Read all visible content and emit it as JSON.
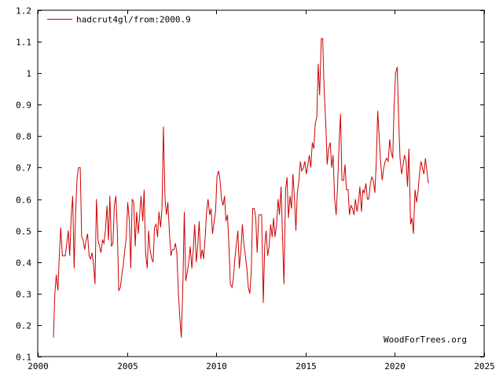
{
  "chart_data": {
    "type": "line",
    "title": "",
    "xlabel": "",
    "ylabel": "",
    "xlim": [
      2000,
      2025
    ],
    "ylim": [
      0.1,
      1.2
    ],
    "x_ticks": [
      "2000",
      "2005",
      "2010",
      "2015",
      "2020",
      "2025"
    ],
    "y_ticks": [
      "0.1",
      "0.2",
      "0.3",
      "0.4",
      "0.5",
      "0.6",
      "0.7",
      "0.8",
      "0.9",
      "1",
      "1.1",
      "1.2"
    ],
    "grid": false,
    "legend_position": "top-left",
    "series": [
      {
        "name": "hadcrut4gl/from:2000.9",
        "color": "#cc0000",
        "points": [
          [
            2000.88,
            0.16
          ],
          [
            2000.96,
            0.3
          ],
          [
            2001.04,
            0.36
          ],
          [
            2001.13,
            0.31
          ],
          [
            2001.21,
            0.42
          ],
          [
            2001.29,
            0.51
          ],
          [
            2001.38,
            0.42
          ],
          [
            2001.46,
            0.42
          ],
          [
            2001.54,
            0.42
          ],
          [
            2001.63,
            0.46
          ],
          [
            2001.71,
            0.5
          ],
          [
            2001.79,
            0.42
          ],
          [
            2001.88,
            0.55
          ],
          [
            2001.96,
            0.61
          ],
          [
            2002.04,
            0.38
          ],
          [
            2002.13,
            0.57
          ],
          [
            2002.21,
            0.67
          ],
          [
            2002.29,
            0.7
          ],
          [
            2002.38,
            0.7
          ],
          [
            2002.46,
            0.48
          ],
          [
            2002.54,
            0.47
          ],
          [
            2002.63,
            0.44
          ],
          [
            2002.71,
            0.47
          ],
          [
            2002.79,
            0.49
          ],
          [
            2002.88,
            0.42
          ],
          [
            2002.96,
            0.41
          ],
          [
            2003.04,
            0.43
          ],
          [
            2003.13,
            0.39
          ],
          [
            2003.21,
            0.33
          ],
          [
            2003.29,
            0.6
          ],
          [
            2003.38,
            0.47
          ],
          [
            2003.46,
            0.45
          ],
          [
            2003.54,
            0.43
          ],
          [
            2003.63,
            0.47
          ],
          [
            2003.71,
            0.46
          ],
          [
            2003.79,
            0.5
          ],
          [
            2003.88,
            0.58
          ],
          [
            2003.96,
            0.47
          ],
          [
            2004.04,
            0.61
          ],
          [
            2004.13,
            0.45
          ],
          [
            2004.21,
            0.46
          ],
          [
            2004.29,
            0.58
          ],
          [
            2004.38,
            0.61
          ],
          [
            2004.46,
            0.5
          ],
          [
            2004.54,
            0.31
          ],
          [
            2004.63,
            0.32
          ],
          [
            2004.71,
            0.36
          ],
          [
            2004.79,
            0.39
          ],
          [
            2004.88,
            0.44
          ],
          [
            2004.96,
            0.48
          ],
          [
            2005.04,
            0.59
          ],
          [
            2005.13,
            0.53
          ],
          [
            2005.21,
            0.38
          ],
          [
            2005.29,
            0.6
          ],
          [
            2005.38,
            0.59
          ],
          [
            2005.46,
            0.45
          ],
          [
            2005.54,
            0.56
          ],
          [
            2005.63,
            0.49
          ],
          [
            2005.71,
            0.55
          ],
          [
            2005.79,
            0.61
          ],
          [
            2005.88,
            0.53
          ],
          [
            2005.96,
            0.63
          ],
          [
            2006.04,
            0.43
          ],
          [
            2006.13,
            0.38
          ],
          [
            2006.21,
            0.5
          ],
          [
            2006.29,
            0.44
          ],
          [
            2006.38,
            0.41
          ],
          [
            2006.46,
            0.4
          ],
          [
            2006.54,
            0.51
          ],
          [
            2006.63,
            0.52
          ],
          [
            2006.71,
            0.48
          ],
          [
            2006.79,
            0.56
          ],
          [
            2006.88,
            0.51
          ],
          [
            2006.96,
            0.57
          ],
          [
            2007.04,
            0.83
          ],
          [
            2007.13,
            0.6
          ],
          [
            2007.21,
            0.55
          ],
          [
            2007.29,
            0.59
          ],
          [
            2007.38,
            0.49
          ],
          [
            2007.46,
            0.42
          ],
          [
            2007.54,
            0.44
          ],
          [
            2007.63,
            0.44
          ],
          [
            2007.71,
            0.46
          ],
          [
            2007.79,
            0.43
          ],
          [
            2007.88,
            0.3
          ],
          [
            2007.96,
            0.22
          ],
          [
            2008.04,
            0.16
          ],
          [
            2008.13,
            0.33
          ],
          [
            2008.21,
            0.56
          ],
          [
            2008.29,
            0.34
          ],
          [
            2008.38,
            0.37
          ],
          [
            2008.46,
            0.4
          ],
          [
            2008.54,
            0.45
          ],
          [
            2008.63,
            0.38
          ],
          [
            2008.71,
            0.44
          ],
          [
            2008.79,
            0.52
          ],
          [
            2008.88,
            0.4
          ],
          [
            2008.96,
            0.45
          ],
          [
            2009.04,
            0.53
          ],
          [
            2009.13,
            0.41
          ],
          [
            2009.21,
            0.44
          ],
          [
            2009.29,
            0.41
          ],
          [
            2009.38,
            0.48
          ],
          [
            2009.46,
            0.56
          ],
          [
            2009.54,
            0.6
          ],
          [
            2009.63,
            0.55
          ],
          [
            2009.71,
            0.57
          ],
          [
            2009.79,
            0.49
          ],
          [
            2009.88,
            0.53
          ],
          [
            2009.96,
            0.56
          ],
          [
            2010.04,
            0.67
          ],
          [
            2010.13,
            0.69
          ],
          [
            2010.21,
            0.66
          ],
          [
            2010.29,
            0.6
          ],
          [
            2010.38,
            0.58
          ],
          [
            2010.46,
            0.61
          ],
          [
            2010.54,
            0.53
          ],
          [
            2010.63,
            0.55
          ],
          [
            2010.71,
            0.45
          ],
          [
            2010.79,
            0.33
          ],
          [
            2010.88,
            0.32
          ],
          [
            2010.96,
            0.35
          ],
          [
            2011.04,
            0.41
          ],
          [
            2011.13,
            0.46
          ],
          [
            2011.21,
            0.5
          ],
          [
            2011.29,
            0.38
          ],
          [
            2011.38,
            0.44
          ],
          [
            2011.46,
            0.52
          ],
          [
            2011.54,
            0.46
          ],
          [
            2011.63,
            0.42
          ],
          [
            2011.71,
            0.38
          ],
          [
            2011.79,
            0.32
          ],
          [
            2011.88,
            0.3
          ],
          [
            2011.96,
            0.37
          ],
          [
            2012.04,
            0.57
          ],
          [
            2012.13,
            0.57
          ],
          [
            2012.21,
            0.54
          ],
          [
            2012.29,
            0.43
          ],
          [
            2012.38,
            0.55
          ],
          [
            2012.46,
            0.55
          ],
          [
            2012.54,
            0.55
          ],
          [
            2012.63,
            0.27
          ],
          [
            2012.71,
            0.45
          ],
          [
            2012.79,
            0.5
          ],
          [
            2012.88,
            0.42
          ],
          [
            2012.96,
            0.45
          ],
          [
            2013.04,
            0.52
          ],
          [
            2013.13,
            0.48
          ],
          [
            2013.21,
            0.54
          ],
          [
            2013.29,
            0.48
          ],
          [
            2013.38,
            0.52
          ],
          [
            2013.46,
            0.6
          ],
          [
            2013.54,
            0.55
          ],
          [
            2013.63,
            0.64
          ],
          [
            2013.71,
            0.48
          ],
          [
            2013.79,
            0.33
          ],
          [
            2013.88,
            0.63
          ],
          [
            2013.96,
            0.67
          ],
          [
            2014.04,
            0.54
          ],
          [
            2014.13,
            0.61
          ],
          [
            2014.21,
            0.57
          ],
          [
            2014.29,
            0.68
          ],
          [
            2014.38,
            0.6
          ],
          [
            2014.46,
            0.5
          ],
          [
            2014.54,
            0.62
          ],
          [
            2014.63,
            0.66
          ],
          [
            2014.71,
            0.72
          ],
          [
            2014.79,
            0.69
          ],
          [
            2014.88,
            0.7
          ],
          [
            2014.96,
            0.72
          ],
          [
            2015.04,
            0.68
          ],
          [
            2015.13,
            0.71
          ],
          [
            2015.21,
            0.74
          ],
          [
            2015.29,
            0.7
          ],
          [
            2015.38,
            0.78
          ],
          [
            2015.46,
            0.76
          ],
          [
            2015.54,
            0.84
          ],
          [
            2015.63,
            0.86
          ],
          [
            2015.71,
            1.03
          ],
          [
            2015.79,
            0.93
          ],
          [
            2015.88,
            1.11
          ],
          [
            2015.96,
            1.11
          ],
          [
            2016.04,
            0.95
          ],
          [
            2016.13,
            0.84
          ],
          [
            2016.21,
            0.71
          ],
          [
            2016.29,
            0.76
          ],
          [
            2016.38,
            0.78
          ],
          [
            2016.46,
            0.7
          ],
          [
            2016.54,
            0.74
          ],
          [
            2016.63,
            0.6
          ],
          [
            2016.71,
            0.55
          ],
          [
            2016.79,
            0.64
          ],
          [
            2016.88,
            0.78
          ],
          [
            2016.96,
            0.87
          ],
          [
            2017.04,
            0.66
          ],
          [
            2017.13,
            0.66
          ],
          [
            2017.21,
            0.71
          ],
          [
            2017.29,
            0.63
          ],
          [
            2017.38,
            0.63
          ],
          [
            2017.46,
            0.55
          ],
          [
            2017.54,
            0.58
          ],
          [
            2017.63,
            0.57
          ],
          [
            2017.71,
            0.55
          ],
          [
            2017.79,
            0.6
          ],
          [
            2017.88,
            0.56
          ],
          [
            2017.96,
            0.59
          ],
          [
            2018.04,
            0.64
          ],
          [
            2018.13,
            0.56
          ],
          [
            2018.21,
            0.63
          ],
          [
            2018.29,
            0.62
          ],
          [
            2018.38,
            0.65
          ],
          [
            2018.46,
            0.6
          ],
          [
            2018.54,
            0.6
          ],
          [
            2018.63,
            0.65
          ],
          [
            2018.71,
            0.67
          ],
          [
            2018.79,
            0.66
          ],
          [
            2018.88,
            0.62
          ],
          [
            2018.96,
            0.72
          ],
          [
            2019.04,
            0.88
          ],
          [
            2019.13,
            0.79
          ],
          [
            2019.21,
            0.71
          ],
          [
            2019.29,
            0.66
          ],
          [
            2019.38,
            0.7
          ],
          [
            2019.46,
            0.72
          ],
          [
            2019.54,
            0.73
          ],
          [
            2019.63,
            0.72
          ],
          [
            2019.71,
            0.79
          ],
          [
            2019.79,
            0.75
          ],
          [
            2019.88,
            0.73
          ],
          [
            2019.96,
            0.9
          ],
          [
            2020.04,
            1.0
          ],
          [
            2020.13,
            1.02
          ],
          [
            2020.21,
            0.86
          ],
          [
            2020.29,
            0.73
          ],
          [
            2020.38,
            0.68
          ],
          [
            2020.46,
            0.71
          ],
          [
            2020.54,
            0.74
          ],
          [
            2020.63,
            0.72
          ],
          [
            2020.71,
            0.64
          ],
          [
            2020.79,
            0.76
          ],
          [
            2020.88,
            0.52
          ],
          [
            2020.96,
            0.54
          ],
          [
            2021.04,
            0.49
          ],
          [
            2021.13,
            0.63
          ],
          [
            2021.21,
            0.59
          ],
          [
            2021.29,
            0.62
          ],
          [
            2021.38,
            0.68
          ],
          [
            2021.46,
            0.72
          ],
          [
            2021.54,
            0.7
          ],
          [
            2021.63,
            0.68
          ],
          [
            2021.71,
            0.73
          ],
          [
            2021.79,
            0.69
          ],
          [
            2021.88,
            0.65
          ]
        ]
      }
    ],
    "annotation": "WoodForTrees.org"
  }
}
